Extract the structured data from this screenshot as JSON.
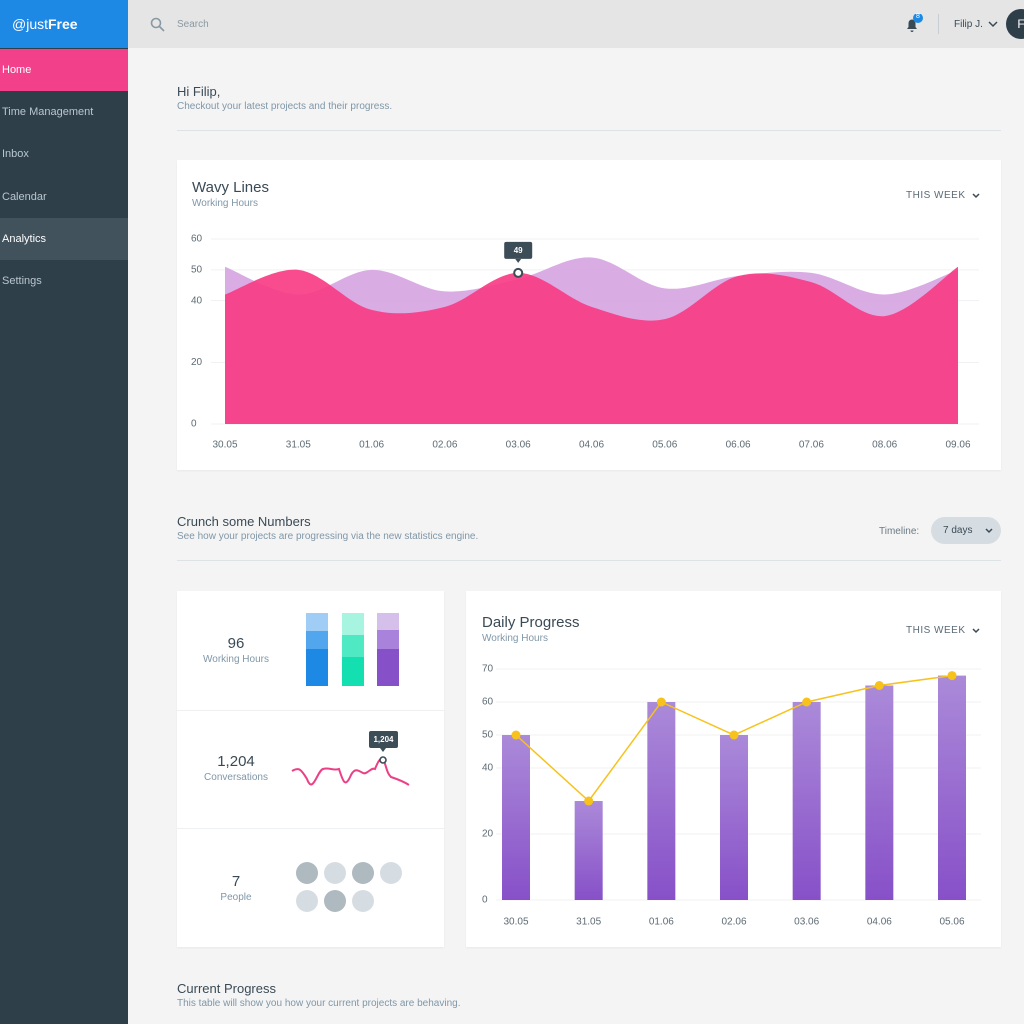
{
  "sidebar": {
    "brand_prefix": "@just",
    "brand_name": "Free",
    "nav": [
      "Home",
      "Time Management",
      "Inbox",
      "Calendar",
      "Analytics",
      "Settings"
    ]
  },
  "topbar": {
    "search_placeholder": "Search",
    "notifications": "8",
    "user": "Filip J.",
    "avatar": "F"
  },
  "greeting": {
    "title": "Hi Filip,",
    "subtitle": "Checkout your latest projects and their progress."
  },
  "wavy_chart": {
    "type": "area",
    "title": "Wavy Lines",
    "subtitle": "Working Hours",
    "period": "THIS WEEK",
    "categories": [
      "30.05",
      "31.05",
      "01.06",
      "02.06",
      "03.06",
      "04.06",
      "05.06",
      "06.06",
      "07.06",
      "08.06",
      "09.06"
    ],
    "series": [
      {
        "color": "#f73d85",
        "values": [
          42,
          50,
          37,
          38,
          49,
          38,
          34,
          48,
          46,
          35,
          51
        ]
      },
      {
        "color": "#d49ddf",
        "values": [
          51,
          42,
          50,
          43,
          47,
          54,
          44,
          48,
          49,
          42,
          50
        ]
      }
    ],
    "ylim": [
      0,
      60
    ],
    "yticks": [
      0,
      20,
      40,
      50,
      60
    ],
    "grid": true
  },
  "crunch": {
    "title": "Crunch some Numbers",
    "subtitle": "See how your projects are progressing via the new statistics engine.",
    "timeline_label": "Timeline:",
    "timeline_value": "7 days"
  },
  "stats": [
    {
      "value": "96",
      "label": "Working Hours"
    },
    {
      "value": "1,204",
      "label": "Conversations"
    },
    {
      "value": "7",
      "label": "People"
    }
  ],
  "daily_chart": {
    "type": "bar",
    "title": "Daily Progress",
    "subtitle": "Working Hours",
    "period": "THIS WEEK",
    "categories": [
      "30.05",
      "31.05",
      "01.06",
      "02.06",
      "03.06",
      "04.06",
      "05.06"
    ],
    "values": [
      50,
      30,
      60,
      50,
      60,
      65,
      68
    ],
    "color": "#9466d0",
    "line_color": "#f7c21b",
    "ylim": [
      0,
      70
    ],
    "yticks": [
      0,
      20,
      40,
      50,
      60,
      70
    ],
    "grid": true
  },
  "current": {
    "title": "Current Progress",
    "subtitle": "This table will show you how your current projects are behaving."
  }
}
